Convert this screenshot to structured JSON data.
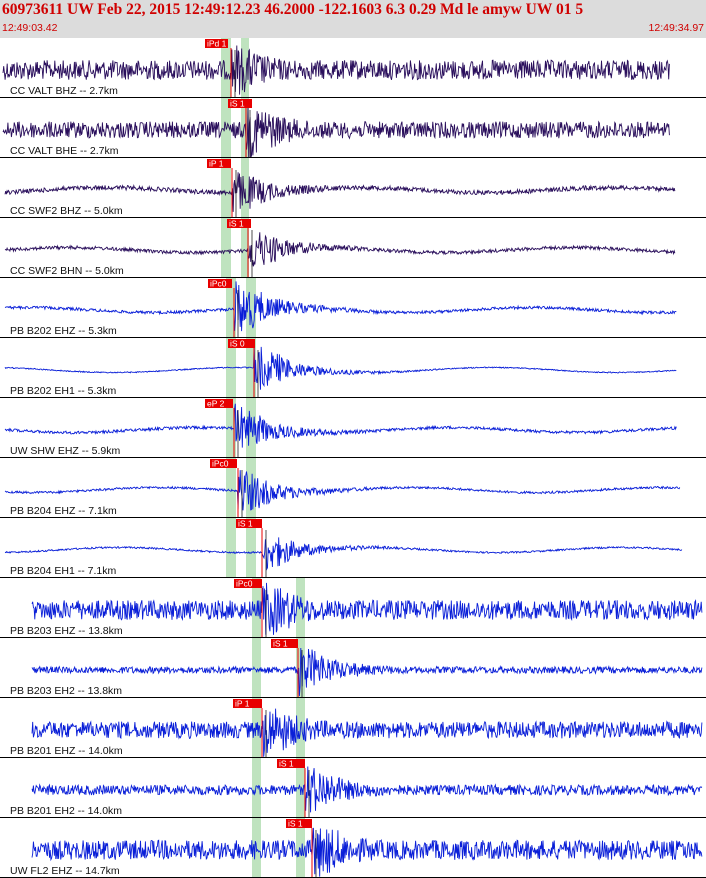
{
  "header": {
    "title": "60973611 UW Feb 22, 2015 12:49:12.23    46.2000 -122.1603  6.3 0.29 Md le amyw UW 01    5",
    "start_time": "12:49:03.42",
    "end_time": "12:49:34.97"
  },
  "colors": {
    "header_bg": "#dcdcdc",
    "header_text": "#d00000",
    "trace_cc": "#2a0f5c",
    "trace_other": "#0a1fd8",
    "pick": "#e80000",
    "window": "#bfe3bf",
    "separator": "#000000"
  },
  "traces": [
    {
      "label": "CC VALT BHZ -- 2.7km",
      "pick": "iPd 1",
      "color_key": "trace_cc",
      "amp": 0.55,
      "noise": 0.35
    },
    {
      "label": "CC VALT BHE -- 2.7km",
      "pick": "iS 1",
      "color_key": "trace_cc",
      "amp": 0.6,
      "noise": 0.3
    },
    {
      "label": "CC SWF2 BHZ -- 5.0km",
      "pick": "iP 1",
      "color_key": "trace_cc",
      "amp": 0.55,
      "noise": 0.08
    },
    {
      "label": "CC SWF2 BHN -- 5.0km",
      "pick": "iS 1",
      "color_key": "trace_cc",
      "amp": 0.55,
      "noise": 0.06
    },
    {
      "label": "PB B202 EHZ -- 5.3km",
      "pick": "iPc0",
      "color_key": "trace_other",
      "amp": 0.7,
      "noise": 0.05
    },
    {
      "label": "PB B202 EH1 -- 5.3km",
      "pick": "iS 0",
      "color_key": "trace_other",
      "amp": 0.6,
      "noise": 0.02
    },
    {
      "label": "UW SHW EHZ -- 5.9km",
      "pick": "eP 2",
      "color_key": "trace_other",
      "amp": 0.6,
      "noise": 0.05
    },
    {
      "label": "PB B204 EHZ -- 7.1km",
      "pick": "iPc0",
      "color_key": "trace_other",
      "amp": 0.6,
      "noise": 0.04
    },
    {
      "label": "PB B204 EH1 -- 7.1km",
      "pick": "iS 1",
      "color_key": "trace_other",
      "amp": 0.5,
      "noise": 0.03
    },
    {
      "label": "PB B203 EHZ -- 13.8km",
      "pick": "iPc0",
      "color_key": "trace_other",
      "amp": 0.6,
      "noise": 0.35
    },
    {
      "label": "PB B203 EH2 -- 13.8km",
      "pick": "iS 1",
      "color_key": "trace_other",
      "amp": 0.6,
      "noise": 0.12
    },
    {
      "label": "PB B201 EHZ -- 14.0km",
      "pick": "iP 1",
      "color_key": "trace_other",
      "amp": 0.6,
      "noise": 0.3
    },
    {
      "label": "PB B201 EH2 -- 14.0km",
      "pick": "iS 1",
      "color_key": "trace_other",
      "amp": 0.6,
      "noise": 0.18
    },
    {
      "label": "UW FL2 EHZ -- 14.7km",
      "pick": "iS 1",
      "color_key": "trace_other",
      "amp": 0.6,
      "noise": 0.35
    }
  ]
}
